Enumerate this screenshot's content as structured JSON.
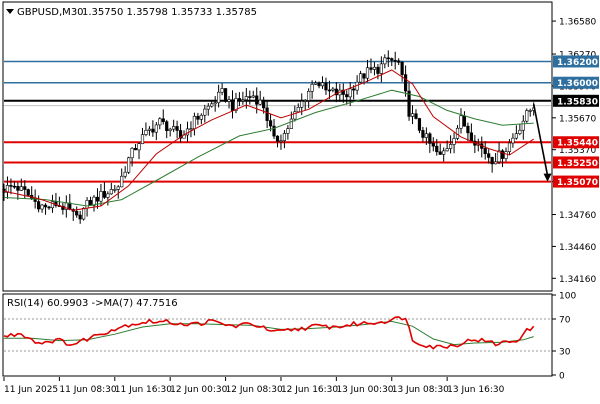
{
  "header": {
    "symbol_label": "GBPUSD,M30",
    "ohlc_text": "1.35750 1.35798 1.35733 1.35785"
  },
  "rsi_header": {
    "text": "RSI(14) 60.9903  ->MA(7) 47.7516"
  },
  "colors": {
    "background": "#ffffff",
    "candle": "#000000",
    "ma_fast": "#c00000",
    "ma_slow": "#2e7d32",
    "support_line": "#e00000",
    "resistance_line": "#2f6f9f",
    "pivot_line": "#000000",
    "rsi_line": "#e00000",
    "rsi_ma": "#2e7d32"
  },
  "chart_data": [
    {
      "type": "candlestick",
      "title": "GBPUSD,M30",
      "ylim": [
        1.3405,
        1.3675
      ],
      "yticks": [
        1.3658,
        1.3627,
        1.3597,
        1.3567,
        1.3537,
        1.35069,
        1.3476,
        1.3446,
        1.3416
      ],
      "y_tick_labels": [
        "1.36580",
        "1.36270",
        "1.35970",
        "1.35670",
        "1.35370",
        "1.35069",
        "1.34760",
        "1.34460",
        "1.34160"
      ],
      "x_tick_labels": [
        "11 Jun 2025",
        "11 Jun 08:30",
        "11 Jun 16:30",
        "12 Jun 00:30",
        "12 Jun 08:30",
        "12 Jun 16:30",
        "13 Jun 00:30",
        "13 Jun 08:30",
        "13 Jun 16:30"
      ],
      "current_price": 1.35785,
      "levels": [
        {
          "value": 1.362,
          "label": "1.36200",
          "kind": "resistance"
        },
        {
          "value": 1.36,
          "label": "1.36000",
          "kind": "resistance"
        },
        {
          "value": 1.3583,
          "label": "1.35830",
          "kind": "pivot"
        },
        {
          "value": 1.3544,
          "label": "1.35440",
          "kind": "support"
        },
        {
          "value": 1.3525,
          "label": "1.35250",
          "kind": "support"
        },
        {
          "value": 1.3507,
          "label": "1.35070",
          "kind": "support"
        }
      ],
      "close_path": [
        [
          0,
          1.35
        ],
        [
          3,
          1.3503
        ],
        [
          6,
          1.3497
        ],
        [
          9,
          1.3488
        ],
        [
          12,
          1.3482
        ],
        [
          15,
          1.3486
        ],
        [
          18,
          1.3482
        ],
        [
          21,
          1.3472
        ],
        [
          24,
          1.3485
        ],
        [
          27,
          1.3492
        ],
        [
          30,
          1.3497
        ],
        [
          33,
          1.3503
        ],
        [
          36,
          1.3528
        ],
        [
          39,
          1.3545
        ],
        [
          42,
          1.3555
        ],
        [
          45,
          1.3563
        ],
        [
          48,
          1.3557
        ],
        [
          51,
          1.3548
        ],
        [
          54,
          1.3561
        ],
        [
          57,
          1.3571
        ],
        [
          60,
          1.358
        ],
        [
          63,
          1.359
        ],
        [
          66,
          1.3578
        ],
        [
          69,
          1.3585
        ],
        [
          72,
          1.3588
        ],
        [
          75,
          1.3578
        ],
        [
          78,
          1.3545
        ],
        [
          81,
          1.3552
        ],
        [
          84,
          1.357
        ],
        [
          87,
          1.3587
        ],
        [
          90,
          1.3603
        ],
        [
          93,
          1.3592
        ],
        [
          96,
          1.359
        ],
        [
          99,
          1.3589
        ],
        [
          102,
          1.3602
        ],
        [
          105,
          1.361
        ],
        [
          108,
          1.3613
        ],
        [
          111,
          1.3622
        ],
        [
          114,
          1.3618
        ],
        [
          117,
          1.3573
        ],
        [
          120,
          1.3557
        ],
        [
          123,
          1.3542
        ],
        [
          126,
          1.353
        ],
        [
          129,
          1.3545
        ],
        [
          132,
          1.3565
        ],
        [
          135,
          1.355
        ],
        [
          138,
          1.3538
        ],
        [
          141,
          1.3528
        ],
        [
          144,
          1.3533
        ],
        [
          147,
          1.3548
        ],
        [
          150,
          1.3565
        ],
        [
          153,
          1.3579
        ]
      ],
      "ma_fast": [
        [
          0,
          1.3498
        ],
        [
          10,
          1.3491
        ],
        [
          20,
          1.348
        ],
        [
          28,
          1.3484
        ],
        [
          36,
          1.3503
        ],
        [
          44,
          1.3533
        ],
        [
          52,
          1.3551
        ],
        [
          60,
          1.3565
        ],
        [
          70,
          1.3579
        ],
        [
          80,
          1.3567
        ],
        [
          88,
          1.3575
        ],
        [
          96,
          1.359
        ],
        [
          104,
          1.36
        ],
        [
          112,
          1.3612
        ],
        [
          118,
          1.3599
        ],
        [
          124,
          1.3568
        ],
        [
          132,
          1.3549
        ],
        [
          140,
          1.3538
        ],
        [
          146,
          1.3532
        ],
        [
          153,
          1.3547
        ]
      ],
      "ma_slow": [
        [
          0,
          1.3492
        ],
        [
          12,
          1.349
        ],
        [
          24,
          1.3484
        ],
        [
          34,
          1.349
        ],
        [
          44,
          1.3508
        ],
        [
          56,
          1.353
        ],
        [
          68,
          1.355
        ],
        [
          78,
          1.3557
        ],
        [
          90,
          1.3572
        ],
        [
          102,
          1.3583
        ],
        [
          112,
          1.3593
        ],
        [
          120,
          1.3587
        ],
        [
          128,
          1.3574
        ],
        [
          136,
          1.3566
        ],
        [
          144,
          1.356
        ],
        [
          153,
          1.3562
        ]
      ],
      "annotation_arrow": {
        "from": [
          153,
          1.358
        ],
        "to": [
          157,
          1.3507
        ]
      }
    },
    {
      "type": "line",
      "title": "RSI(14) 60.9903 ->MA(7) 47.7516",
      "ylim": [
        0,
        100
      ],
      "yticks": [
        100,
        70,
        30,
        0
      ],
      "series": [
        {
          "name": "RSI(14)",
          "values": [
            [
              0,
              48
            ],
            [
              5,
              52
            ],
            [
              10,
              40
            ],
            [
              15,
              44
            ],
            [
              20,
              38
            ],
            [
              25,
              47
            ],
            [
              30,
              55
            ],
            [
              36,
              63
            ],
            [
              42,
              67
            ],
            [
              48,
              66
            ],
            [
              54,
              63
            ],
            [
              60,
              67
            ],
            [
              66,
              61
            ],
            [
              72,
              64
            ],
            [
              78,
              53
            ],
            [
              84,
              57
            ],
            [
              90,
              61
            ],
            [
              96,
              60
            ],
            [
              102,
              64
            ],
            [
              108,
              66
            ],
            [
              112,
              69
            ],
            [
              116,
              73
            ],
            [
              118,
              43
            ],
            [
              124,
              35
            ],
            [
              130,
              37
            ],
            [
              136,
              45
            ],
            [
              142,
              39
            ],
            [
              148,
              43
            ],
            [
              151,
              55
            ],
            [
              153,
              61
            ]
          ]
        },
        {
          "name": "MA(7)",
          "values": [
            [
              0,
              46
            ],
            [
              8,
              46
            ],
            [
              16,
              43
            ],
            [
              24,
              44
            ],
            [
              32,
              51
            ],
            [
              40,
              60
            ],
            [
              48,
              64
            ],
            [
              56,
              64
            ],
            [
              64,
              63
            ],
            [
              72,
              62
            ],
            [
              80,
              57
            ],
            [
              88,
              58
            ],
            [
              96,
              60
            ],
            [
              104,
              63
            ],
            [
              112,
              67
            ],
            [
              118,
              61
            ],
            [
              124,
              45
            ],
            [
              130,
              38
            ],
            [
              136,
              40
            ],
            [
              144,
              41
            ],
            [
              150,
              44
            ],
            [
              153,
              48
            ]
          ]
        }
      ]
    }
  ]
}
